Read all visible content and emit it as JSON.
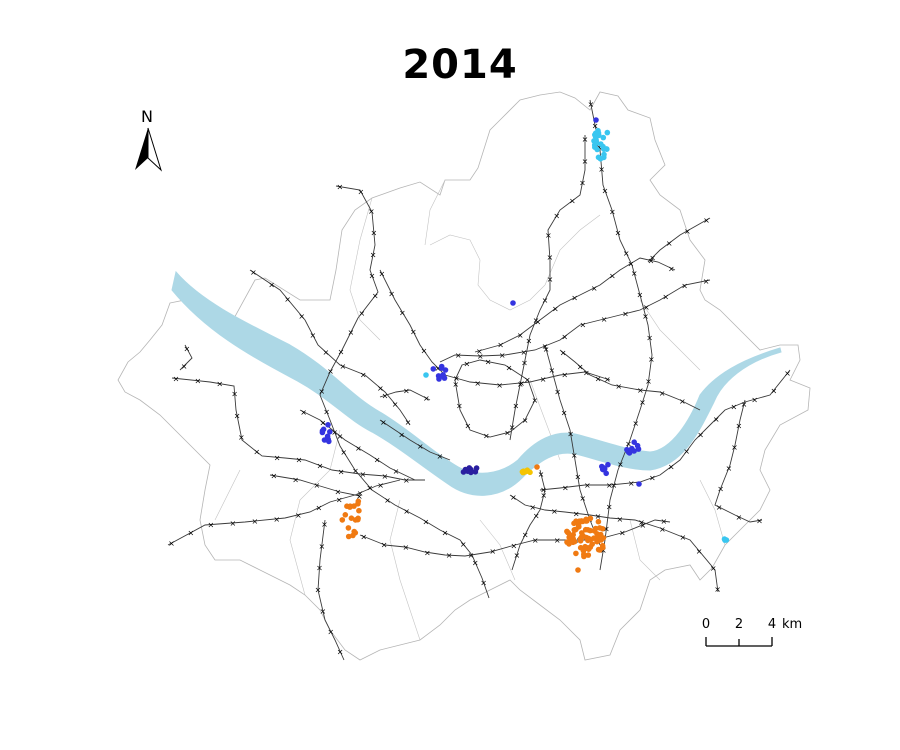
{
  "title": "2014",
  "north_arrow": {
    "label": "N"
  },
  "scale_bar": {
    "ticks": [
      "0",
      "2",
      "4"
    ],
    "unit": "km"
  },
  "colors": {
    "river": "#add8e6",
    "boundary": "#b5b5b5",
    "rail": "#333333",
    "station": "#000000",
    "orange": "#f07a12",
    "blue": "#3434e0",
    "cyan": "#39c6f0",
    "yellow": "#f5c400",
    "navy": "#2a1fa0"
  },
  "point_clusters": [
    {
      "name": "cluster-north-cyan",
      "color": "cyan",
      "count": 24
    },
    {
      "name": "cluster-southeast-orange",
      "color": "orange",
      "count": 70
    },
    {
      "name": "cluster-southwest-orange",
      "color": "orange",
      "count": 18
    },
    {
      "name": "cluster-river-yellow",
      "color": "yellow",
      "count": 8
    },
    {
      "name": "cluster-river-navy",
      "color": "navy",
      "count": 8
    },
    {
      "name": "cluster-central-blue",
      "color": "blue",
      "count": 9
    },
    {
      "name": "cluster-west-blue",
      "color": "blue",
      "count": 9
    },
    {
      "name": "cluster-east-blue",
      "color": "blue",
      "count": 8
    },
    {
      "name": "cluster-southeast-blue",
      "color": "blue",
      "count": 8
    },
    {
      "name": "cluster-east-cyan",
      "color": "cyan",
      "count": 3
    }
  ]
}
